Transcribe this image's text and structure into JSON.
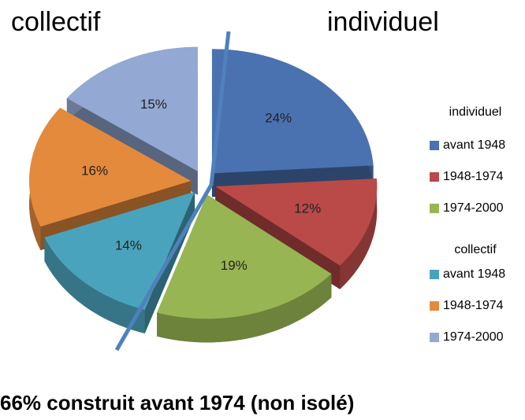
{
  "chart_data": {
    "type": "pie3d",
    "annotations": [
      "collectif",
      "individuel"
    ],
    "groups": [
      {
        "name": "individuel",
        "categories": [
          "avant 1948",
          "1948-1974",
          "1974-2000"
        ],
        "values": [
          24,
          12,
          19
        ],
        "value_labels": [
          "24%",
          "12%",
          "19%"
        ],
        "colors": [
          "#4a72b0",
          "#b94a48",
          "#97b552"
        ]
      },
      {
        "name": "collectif",
        "categories": [
          "avant 1948",
          "1948-1974",
          "1974-2000"
        ],
        "values": [
          14,
          16,
          15
        ],
        "value_labels": [
          "14%",
          "16%",
          "15%"
        ],
        "colors": [
          "#4aa3bc",
          "#e48a3c",
          "#93a9d3"
        ]
      }
    ],
    "footer": "66% construit avant 1974 (non isolé)"
  }
}
